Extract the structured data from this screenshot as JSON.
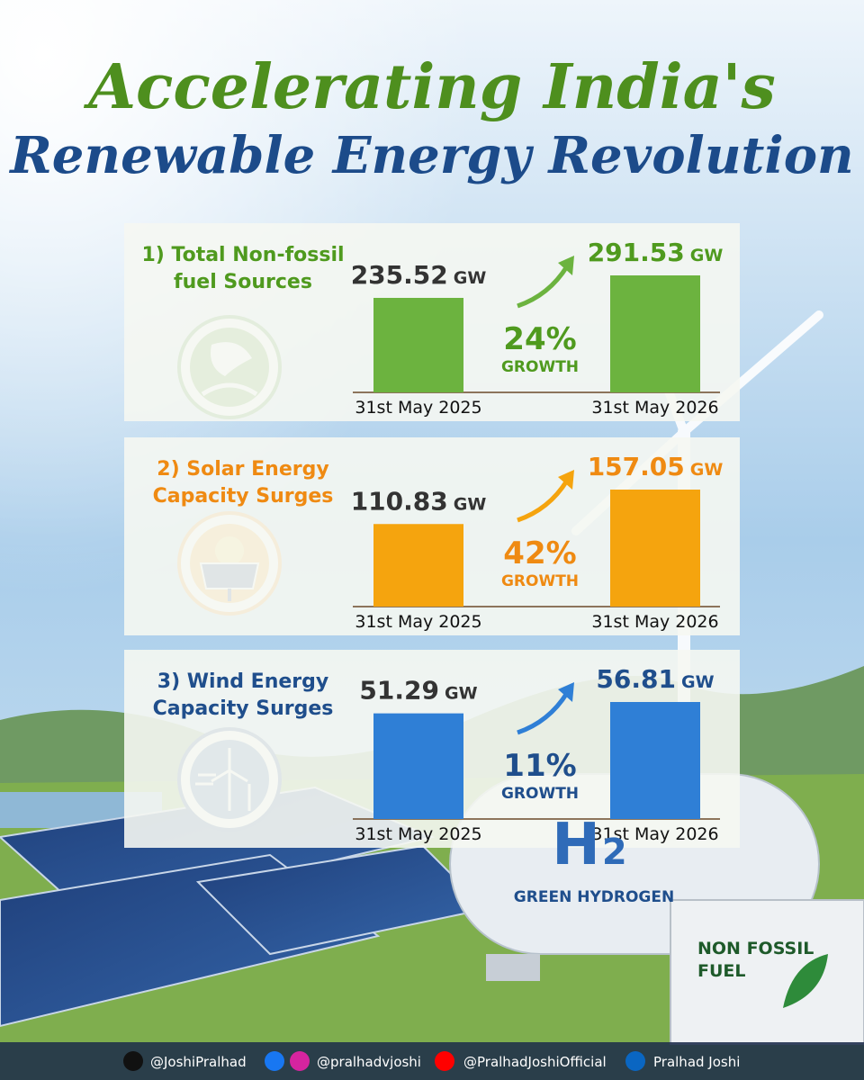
{
  "header": {
    "title": [
      "Accelerating India's",
      "Renewable Energy Revolution"
    ]
  },
  "chart_data": [
    {
      "type": "bar",
      "title": [
        "1) Total Non-fossil",
        "fuel Sources"
      ],
      "categories": [
        "31st May 2025",
        "31st May 2026"
      ],
      "values": [
        235.52,
        291.53
      ],
      "unit": "GW",
      "color": "#6cb33f",
      "title_color": "#4f9a1e",
      "annotation": "24%",
      "annotation_note": "GROWTH"
    },
    {
      "type": "bar",
      "title": [
        "2) Solar Energy",
        "Capacity Surges"
      ],
      "categories": [
        "31st May 2025",
        "31st May 2026"
      ],
      "values": [
        110.83,
        157.05
      ],
      "unit": "GW",
      "color": "#f5a40e",
      "title_color": "#ef8a12",
      "annotation": "42%",
      "annotation_note": "GROWTH"
    },
    {
      "type": "bar",
      "title": [
        "3) Wind Energy",
        "Capacity Surges"
      ],
      "categories": [
        "31st May 2025",
        "31st May 2026"
      ],
      "values": [
        51.29,
        56.81
      ],
      "unit": "GW",
      "color": "#2f7fd6",
      "title_color": "#1f4e8c",
      "annotation": "11%",
      "annotation_note": "GROWTH"
    }
  ],
  "scene": {
    "tank_symbol": "H",
    "tank_subscript": "2",
    "tank_label": "GREEN HYDROGEN",
    "container_label": [
      "NON FOSSIL",
      "FUEL"
    ]
  },
  "footer": {
    "handles": [
      "@JoshiPralhad",
      "@pralhadvjoshi",
      "@PralhadJoshiOfficial",
      "Pralhad Joshi"
    ]
  }
}
